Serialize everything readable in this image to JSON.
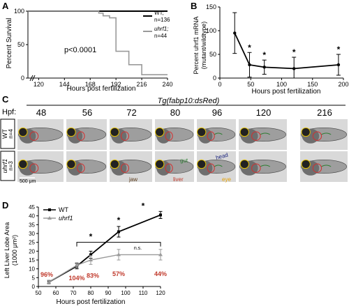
{
  "figure": {
    "panel_letters": [
      "A",
      "B",
      "C",
      "D"
    ]
  },
  "panelA": {
    "ylabel": "Percent Survival",
    "xlabel": "Hours post fertilization",
    "pvalue": "p<0.0001",
    "legend": [
      {
        "name": "WT;",
        "n": "n=136",
        "color": "#000000"
      },
      {
        "name": "uhrf1;",
        "n": "n=44",
        "color": "#9a9a9a"
      }
    ]
  },
  "panelB": {
    "ylabel_line1": "Percent uhrf1 mRNA",
    "ylabel_line2": "(mutant/wildtype)",
    "xlabel": "Hours post fertilization"
  },
  "panelC": {
    "title": "Tg(fabp10:dsRed)",
    "hpf_label": "Hpf:",
    "stages": [
      "48",
      "56",
      "72",
      "80",
      "96",
      "120",
      "216"
    ],
    "row_wt": {
      "genotype": "WT",
      "n": "n=4"
    },
    "row_mut": {
      "genotype": "uhrf1",
      "n": "n=3"
    },
    "scale_bar": "500 μm",
    "annotations": {
      "jaw": "jaw",
      "liver": "liver",
      "gut": "gut",
      "head": "head",
      "eye": "eye"
    }
  },
  "panelD": {
    "ylabel_line1": "Left Liver Lobe Area",
    "ylabel_line2": "(1000 μm²)",
    "xlabel": "Hours post fertilization",
    "ns": "n.s.",
    "percents": [
      "96%",
      "104%",
      "83%",
      "57%",
      "44%"
    ],
    "stars": [
      "*",
      "*",
      "*"
    ]
  },
  "chart_data": [
    {
      "panel": "A",
      "type": "line",
      "title": "",
      "xlabel": "Hours post fertilization",
      "ylabel": "Percent Survival",
      "x_ticks": [
        120,
        144,
        168,
        192,
        216,
        240
      ],
      "y_ticks": [
        0,
        50,
        100
      ],
      "xlim": [
        110,
        240
      ],
      "ylim": [
        0,
        100
      ],
      "series": [
        {
          "name": "WT;",
          "color": "#000000",
          "x": [
            110,
            240
          ],
          "y": [
            100,
            100
          ]
        },
        {
          "name": "uhrf1;",
          "color": "#9a9a9a",
          "x": [
            110,
            170,
            176,
            176,
            180,
            180,
            186,
            186,
            192,
            192,
            204,
            204,
            216,
            216,
            240
          ],
          "y": [
            100,
            100,
            100,
            97,
            97,
            93,
            93,
            90,
            90,
            40,
            40,
            20,
            20,
            5,
            5
          ]
        }
      ],
      "annotations": [
        "p<0.0001"
      ],
      "legend_position": "right"
    },
    {
      "panel": "B",
      "type": "line",
      "xlabel": "Hours post fertilization",
      "ylabel": "Percent uhrf1 mRNA (mutant/wildtype)",
      "x_ticks": [
        0,
        50,
        100,
        150,
        200
      ],
      "y_ticks": [
        0,
        50,
        100,
        150
      ],
      "xlim": [
        0,
        200
      ],
      "ylim": [
        0,
        150
      ],
      "x": [
        24,
        48,
        72,
        120,
        192
      ],
      "y": [
        95,
        28,
        23,
        20,
        28
      ],
      "err": [
        43,
        26,
        15,
        24,
        22
      ],
      "significance": [
        "",
        "*",
        "*",
        "*",
        "*"
      ]
    },
    {
      "panel": "D",
      "type": "line",
      "xlabel": "Hours post fertilization",
      "ylabel": "Left Liver Lobe Area (1000 μm²)",
      "x_ticks": [
        50,
        60,
        70,
        80,
        90,
        100,
        110,
        120
      ],
      "y_ticks": [
        0,
        5,
        10,
        15,
        20,
        25,
        30,
        35,
        40,
        45
      ],
      "xlim": [
        50,
        120
      ],
      "ylim": [
        0,
        45
      ],
      "series": [
        {
          "name": "WT",
          "color": "#000000",
          "marker": "square",
          "x": [
            56,
            72,
            80,
            96,
            120
          ],
          "y": [
            2.5,
            11.5,
            18,
            31,
            40.5
          ],
          "err": [
            1,
            1.5,
            2,
            3,
            2
          ]
        },
        {
          "name": "uhrf1",
          "color": "#9a9a9a",
          "marker": "triangle",
          "x": [
            56,
            72,
            80,
            96,
            120
          ],
          "y": [
            2.5,
            12,
            15,
            18,
            18
          ],
          "err": [
            1,
            1.5,
            2.5,
            3,
            3
          ]
        }
      ],
      "percent_labels": [
        {
          "x": 56,
          "text": "96%"
        },
        {
          "x": 72,
          "text": "104%"
        },
        {
          "x": 80,
          "text": "83%"
        },
        {
          "x": 96,
          "text": "57%"
        },
        {
          "x": 120,
          "text": "44%"
        }
      ],
      "legend_position": "top-left"
    }
  ]
}
